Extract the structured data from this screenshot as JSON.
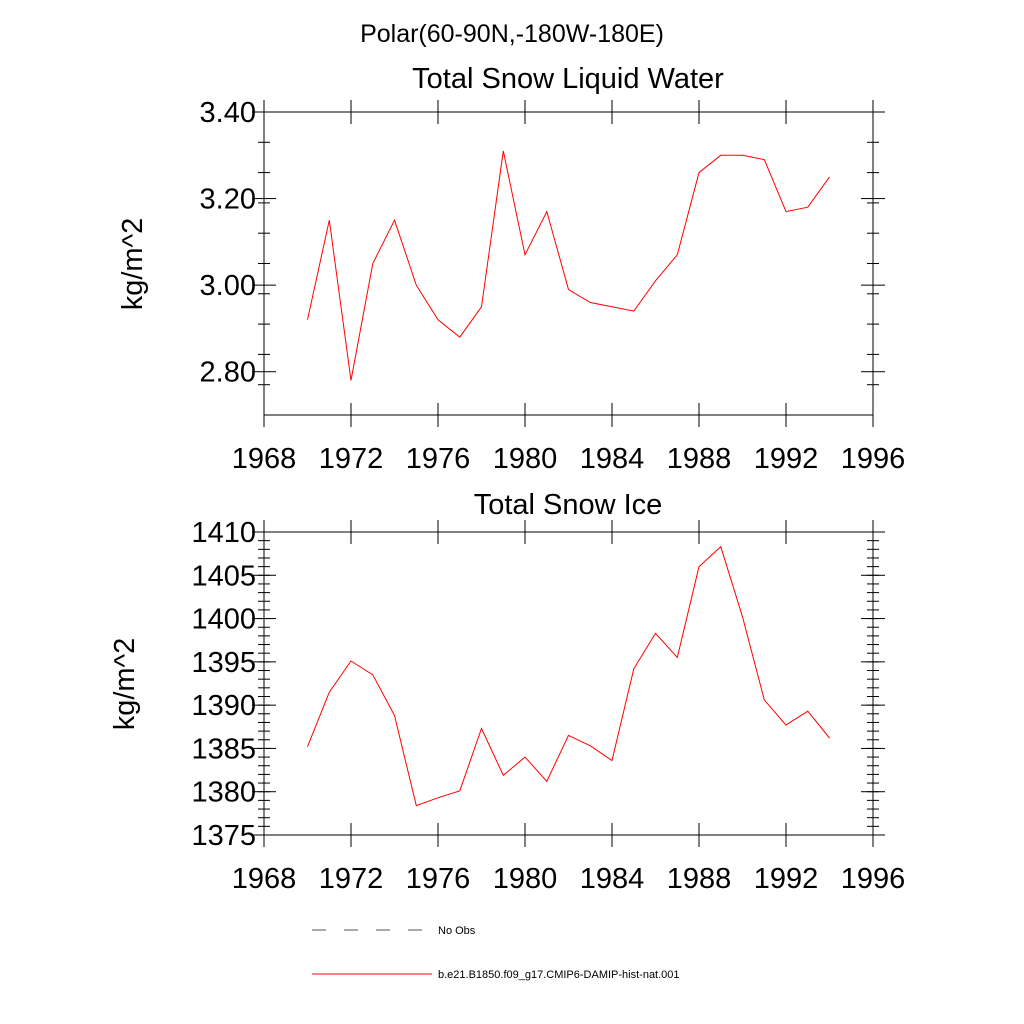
{
  "page_title": "Polar(60-90N,-180W-180E)",
  "chart_data": [
    {
      "type": "line",
      "title": "Total Snow Liquid Water",
      "xlabel": "",
      "ylabel": "kg/m^2",
      "xlim": [
        1968,
        1996
      ],
      "ylim": [
        2.7,
        3.4
      ],
      "x_ticks": [
        "1968",
        "1972",
        "1976",
        "1980",
        "1984",
        "1988",
        "1992",
        "1996"
      ],
      "y_ticks": [
        "2.80",
        "3.00",
        "3.20",
        "3.40"
      ],
      "grid": false,
      "x": [
        1970,
        1971,
        1972,
        1973,
        1974,
        1975,
        1976,
        1977,
        1978,
        1979,
        1980,
        1981,
        1982,
        1983,
        1984,
        1985,
        1986,
        1987,
        1988,
        1989,
        1990,
        1991,
        1992,
        1993,
        1994
      ],
      "series": [
        {
          "name": "b.e21.B1850.f09_g17.CMIP6-DAMIP-hist-nat.001",
          "color": "#ff0000",
          "values": [
            2.92,
            3.15,
            2.78,
            3.05,
            3.15,
            3.0,
            2.92,
            2.88,
            2.95,
            3.31,
            3.07,
            3.17,
            2.99,
            2.96,
            2.95,
            2.94,
            3.01,
            3.07,
            3.26,
            3.3,
            3.3,
            3.29,
            3.17,
            3.18,
            3.25
          ]
        }
      ]
    },
    {
      "type": "line",
      "title": "Total Snow Ice",
      "xlabel": "",
      "ylabel": "kg/m^2",
      "xlim": [
        1968,
        1996
      ],
      "ylim": [
        1375,
        1410
      ],
      "x_ticks": [
        "1968",
        "1972",
        "1976",
        "1980",
        "1984",
        "1988",
        "1992",
        "1996"
      ],
      "y_ticks": [
        "1375",
        "1380",
        "1385",
        "1390",
        "1395",
        "1400",
        "1405",
        "1410"
      ],
      "grid": false,
      "x": [
        1970,
        1971,
        1972,
        1973,
        1974,
        1975,
        1976,
        1977,
        1978,
        1979,
        1980,
        1981,
        1982,
        1983,
        1984,
        1985,
        1986,
        1987,
        1988,
        1989,
        1990,
        1991,
        1992,
        1993,
        1994
      ],
      "series": [
        {
          "name": "b.e21.B1850.f09_g17.CMIP6-DAMIP-hist-nat.001",
          "color": "#ff0000",
          "values": [
            1385.2,
            1391.5,
            1395.1,
            1393.5,
            1388.8,
            1378.4,
            1379.3,
            1380.1,
            1387.3,
            1381.9,
            1384.0,
            1381.2,
            1386.5,
            1385.3,
            1383.6,
            1394.2,
            1398.3,
            1395.5,
            1406.0,
            1408.3,
            1400.2,
            1390.6,
            1387.7,
            1389.3,
            1386.2
          ]
        }
      ]
    }
  ],
  "legend": {
    "placement": "bottom",
    "items": [
      {
        "label": "No Obs",
        "style": "dashed",
        "color": "#555555"
      },
      {
        "label": "b.e21.B1850.f09_g17.CMIP6-DAMIP-hist-nat.001",
        "style": "solid",
        "color": "#ff0000"
      }
    ]
  }
}
